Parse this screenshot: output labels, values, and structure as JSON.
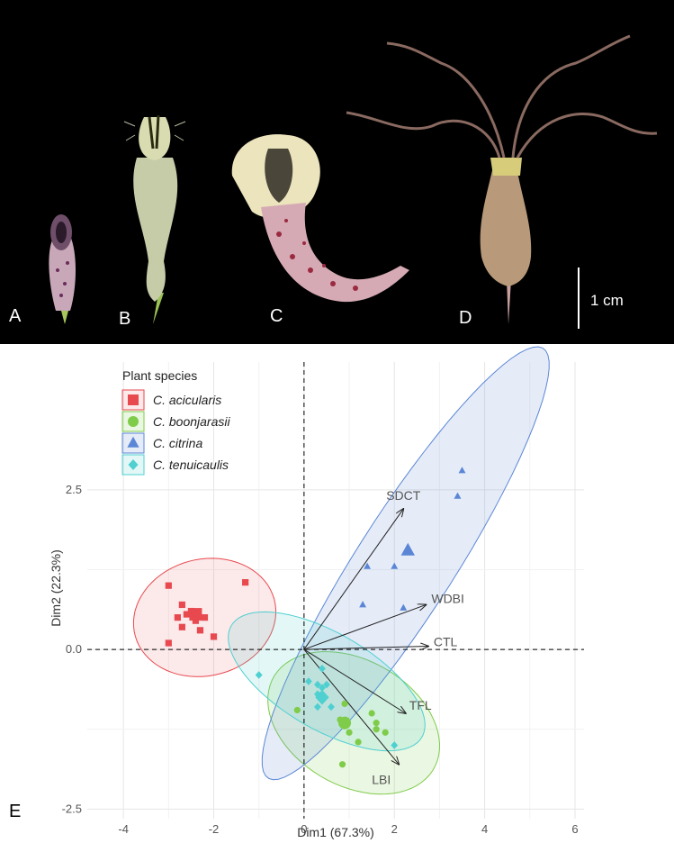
{
  "figure": {
    "panels": [
      "A",
      "B",
      "C",
      "D",
      "E"
    ],
    "scale_bar_label": "1 cm"
  },
  "chart_data": {
    "type": "scatter",
    "xlabel": "Dim1 (67.3%)",
    "ylabel": "Dim2 (22.3%)",
    "xlim": [
      -4.8,
      6.2
    ],
    "ylim": [
      -2.65,
      4.5
    ],
    "xticks": [
      -4,
      -2,
      0,
      2,
      4,
      6
    ],
    "xtick_labels": [
      "-4",
      "-2",
      "0",
      "2",
      "4",
      "6"
    ],
    "yticks": [
      -2.5,
      0.0,
      2.5
    ],
    "ytick_labels": [
      "-2.5",
      "0.0",
      "2.5"
    ],
    "grid": true,
    "legend_title": "Plant species",
    "legend_position": "top-left",
    "series": [
      {
        "name": "C. acicularis",
        "color": "#e8494f",
        "marker": "square",
        "points": [
          [
            -3.0,
            1.0
          ],
          [
            -2.7,
            0.7
          ],
          [
            -2.8,
            0.5
          ],
          [
            -2.7,
            0.35
          ],
          [
            -2.5,
            0.6
          ],
          [
            -2.4,
            0.45
          ],
          [
            -2.3,
            0.3
          ],
          [
            -2.2,
            0.5
          ],
          [
            -2.0,
            0.2
          ],
          [
            -3.0,
            0.1
          ],
          [
            -1.3,
            1.05
          ],
          [
            -2.6,
            0.55
          ]
        ],
        "centroid": [
          -2.4,
          0.55
        ],
        "ellipse": {
          "cx": -2.2,
          "cy": 0.5,
          "rx": 1.58,
          "ry": 0.92,
          "angle_deg": 5
        }
      },
      {
        "name": "C. boonjarasii",
        "color": "#7fcc4a",
        "marker": "circle",
        "points": [
          [
            0.8,
            -1.1
          ],
          [
            0.9,
            -1.2
          ],
          [
            1.0,
            -1.3
          ],
          [
            1.2,
            -1.45
          ],
          [
            1.5,
            -1.0
          ],
          [
            1.6,
            -1.25
          ],
          [
            1.8,
            -1.3
          ],
          [
            0.85,
            -1.8
          ],
          [
            -0.15,
            -0.95
          ],
          [
            0.9,
            -0.85
          ],
          [
            1.6,
            -1.15
          ]
        ],
        "centroid": [
          0.9,
          -1.15
        ],
        "ellipse": {
          "cx": 1.1,
          "cy": -1.15,
          "rx": 1.95,
          "ry": 1.03,
          "angle_deg": -15
        }
      },
      {
        "name": "C. citrina",
        "color": "#5b86d6",
        "marker": "triangle",
        "points": [
          [
            3.5,
            2.8
          ],
          [
            3.4,
            2.4
          ],
          [
            1.4,
            1.3
          ],
          [
            2.0,
            1.3
          ],
          [
            1.3,
            0.7
          ],
          [
            2.2,
            0.65
          ]
        ],
        "centroid": [
          2.3,
          1.55
        ],
        "ellipse": {
          "cx": 2.25,
          "cy": 1.35,
          "rx": 4.55,
          "ry": 0.95,
          "angle_deg": 47
        }
      },
      {
        "name": "C. tenuicaulis",
        "color": "#4fd0d0",
        "marker": "diamond",
        "points": [
          [
            -1.0,
            -0.4
          ],
          [
            0.1,
            -0.5
          ],
          [
            0.3,
            -0.55
          ],
          [
            0.4,
            -0.6
          ],
          [
            0.5,
            -0.55
          ],
          [
            0.3,
            -0.9
          ],
          [
            0.6,
            -0.9
          ],
          [
            0.4,
            -0.3
          ],
          [
            0.3,
            -0.7
          ],
          [
            2.0,
            -1.5
          ]
        ],
        "centroid": [
          0.4,
          -0.75
        ],
        "ellipse": {
          "cx": 0.5,
          "cy": -0.5,
          "rx": 2.3,
          "ry": 0.8,
          "angle_deg": -20
        }
      }
    ],
    "vectors": [
      {
        "label": "SDCT",
        "x": 2.2,
        "y": 2.2
      },
      {
        "label": "WDBI",
        "x": 2.7,
        "y": 0.7
      },
      {
        "label": "CTL",
        "x": 2.75,
        "y": 0.05
      },
      {
        "label": "TFL",
        "x": 2.25,
        "y": -1.0
      },
      {
        "label": "LBI",
        "x": 2.1,
        "y": -1.8
      }
    ]
  }
}
